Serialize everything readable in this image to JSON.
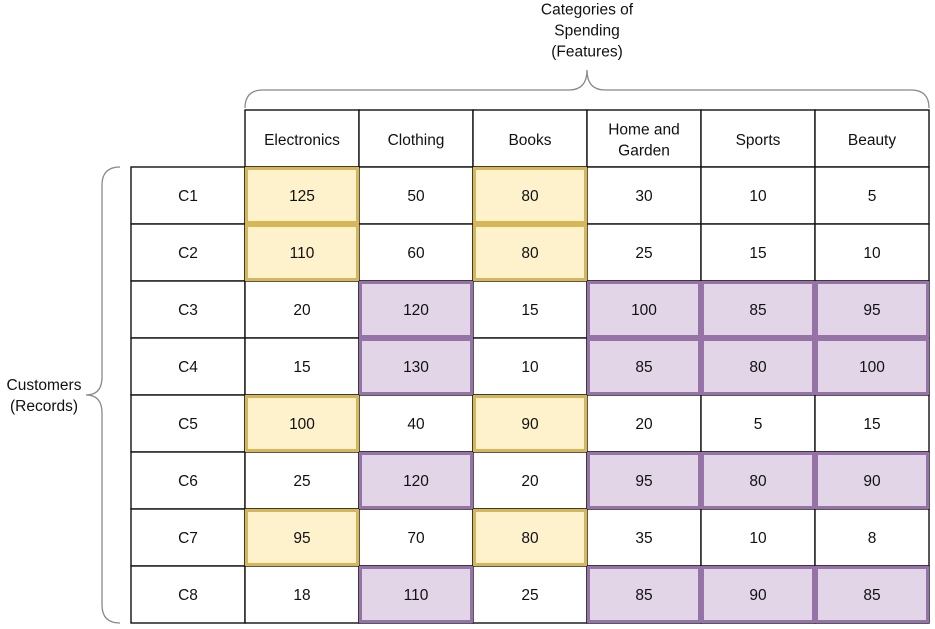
{
  "top_label": [
    "Categories of",
    "Spending",
    "(Features)"
  ],
  "left_label": [
    "Customers",
    "(Records)"
  ],
  "columns": [
    [
      "Electronics"
    ],
    [
      "Clothing"
    ],
    [
      "Books"
    ],
    [
      "Home and",
      "Garden"
    ],
    [
      "Sports"
    ],
    [
      "Beauty"
    ]
  ],
  "rows": [
    {
      "id": "C1",
      "values": [
        "125",
        "50",
        "80",
        "30",
        "10",
        "5"
      ]
    },
    {
      "id": "C2",
      "values": [
        "110",
        "60",
        "80",
        "25",
        "15",
        "10"
      ]
    },
    {
      "id": "C3",
      "values": [
        "20",
        "120",
        "15",
        "100",
        "85",
        "95"
      ]
    },
    {
      "id": "C4",
      "values": [
        "15",
        "130",
        "10",
        "85",
        "80",
        "100"
      ]
    },
    {
      "id": "C5",
      "values": [
        "100",
        "40",
        "90",
        "20",
        "5",
        "15"
      ]
    },
    {
      "id": "C6",
      "values": [
        "25",
        "120",
        "20",
        "95",
        "80",
        "90"
      ]
    },
    {
      "id": "C7",
      "values": [
        "95",
        "70",
        "80",
        "35",
        "10",
        "8"
      ]
    },
    {
      "id": "C8",
      "values": [
        "18",
        "110",
        "25",
        "85",
        "90",
        "85"
      ]
    }
  ],
  "highlight_groups": {
    "yellow": {
      "fill": "#fdf2cc",
      "stroke": "#d6b656",
      "cells": [
        [
          0,
          0
        ],
        [
          0,
          2
        ],
        [
          1,
          0
        ],
        [
          1,
          2
        ],
        [
          4,
          0
        ],
        [
          4,
          2
        ],
        [
          6,
          0
        ],
        [
          6,
          2
        ]
      ]
    },
    "purple": {
      "fill": "#e1d5e7",
      "stroke": "#9673a6",
      "cells": [
        [
          2,
          1
        ],
        [
          2,
          3
        ],
        [
          2,
          4
        ],
        [
          2,
          5
        ],
        [
          3,
          1
        ],
        [
          3,
          3
        ],
        [
          3,
          4
        ],
        [
          3,
          5
        ],
        [
          5,
          1
        ],
        [
          5,
          3
        ],
        [
          5,
          4
        ],
        [
          5,
          5
        ],
        [
          7,
          1
        ],
        [
          7,
          3
        ],
        [
          7,
          4
        ],
        [
          7,
          5
        ]
      ]
    }
  }
}
